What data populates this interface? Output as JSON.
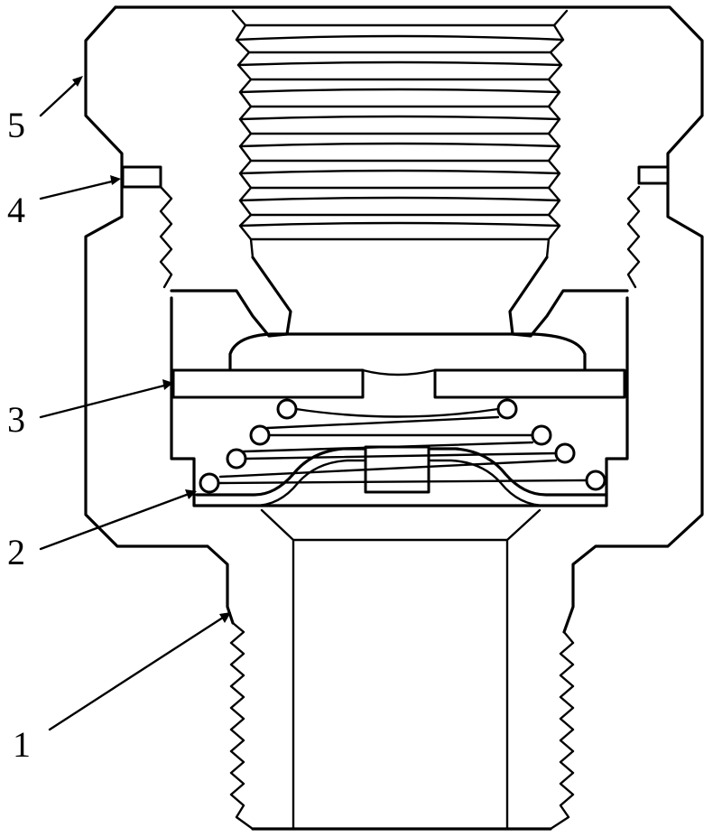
{
  "diagram": {
    "callouts": [
      {
        "id": "1",
        "text": "1"
      },
      {
        "id": "2",
        "text": "2"
      },
      {
        "id": "3",
        "text": "3"
      },
      {
        "id": "4",
        "text": "4"
      },
      {
        "id": "5",
        "text": "5"
      }
    ]
  }
}
